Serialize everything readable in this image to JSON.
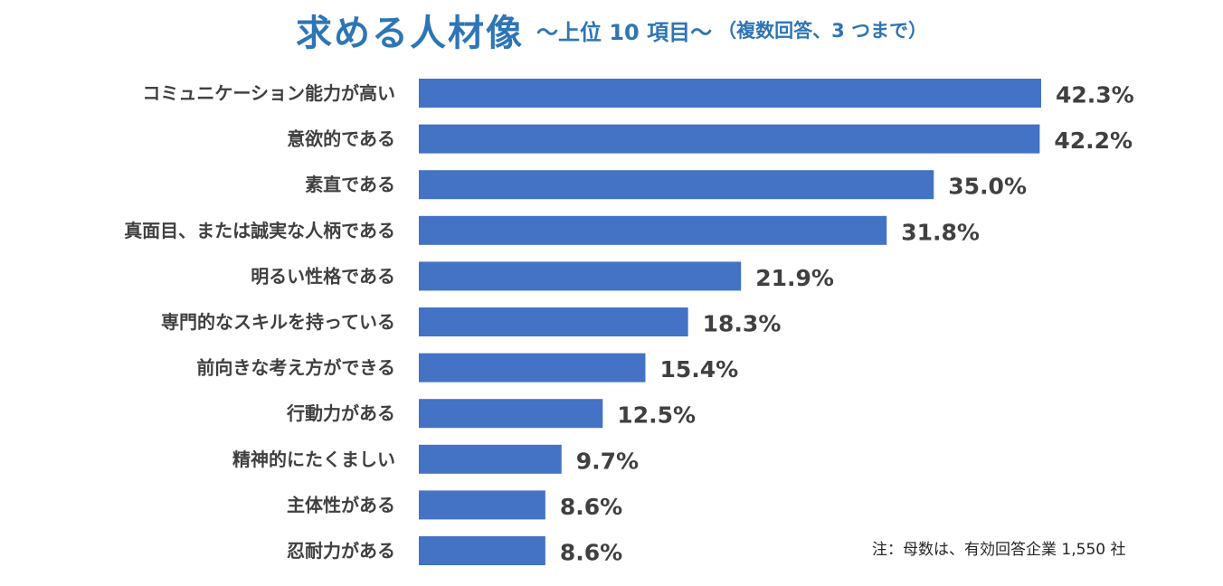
{
  "header": {
    "title_main": "求める人材像",
    "title_sub": "～上位 10 項目～",
    "title_paren": "（複数回答、3 つまで）"
  },
  "note": "注：母数は、有効回答企業 1,550 社",
  "colors": {
    "bar": "#4472c4",
    "title": "#2e75b6",
    "label": "#404040"
  },
  "chart_data": {
    "type": "bar",
    "orientation": "horizontal",
    "title": "求める人材像 ～上位 10 項目～（複数回答、3 つまで）",
    "xlabel": "",
    "ylabel": "",
    "unit": "%",
    "xlim": [
      0,
      42.3
    ],
    "grid": false,
    "categories": [
      "コミュニケーション能力が高い",
      "意欲的である",
      "素直である",
      "真面目、または誠実な人柄である",
      "明るい性格である",
      "専門的なスキルを持っている",
      "前向きな考え方ができる",
      "行動力がある",
      "精神的にたくましい",
      "主体性がある",
      "忍耐力がある"
    ],
    "values": [
      42.3,
      42.2,
      35.0,
      31.8,
      21.9,
      18.3,
      15.4,
      12.5,
      9.7,
      8.6,
      8.6
    ],
    "value_labels": [
      "42.3%",
      "42.2%",
      "35.0%",
      "31.8%",
      "21.9%",
      "18.3%",
      "15.4%",
      "12.5%",
      "9.7%",
      "8.6%",
      "8.6%"
    ]
  }
}
